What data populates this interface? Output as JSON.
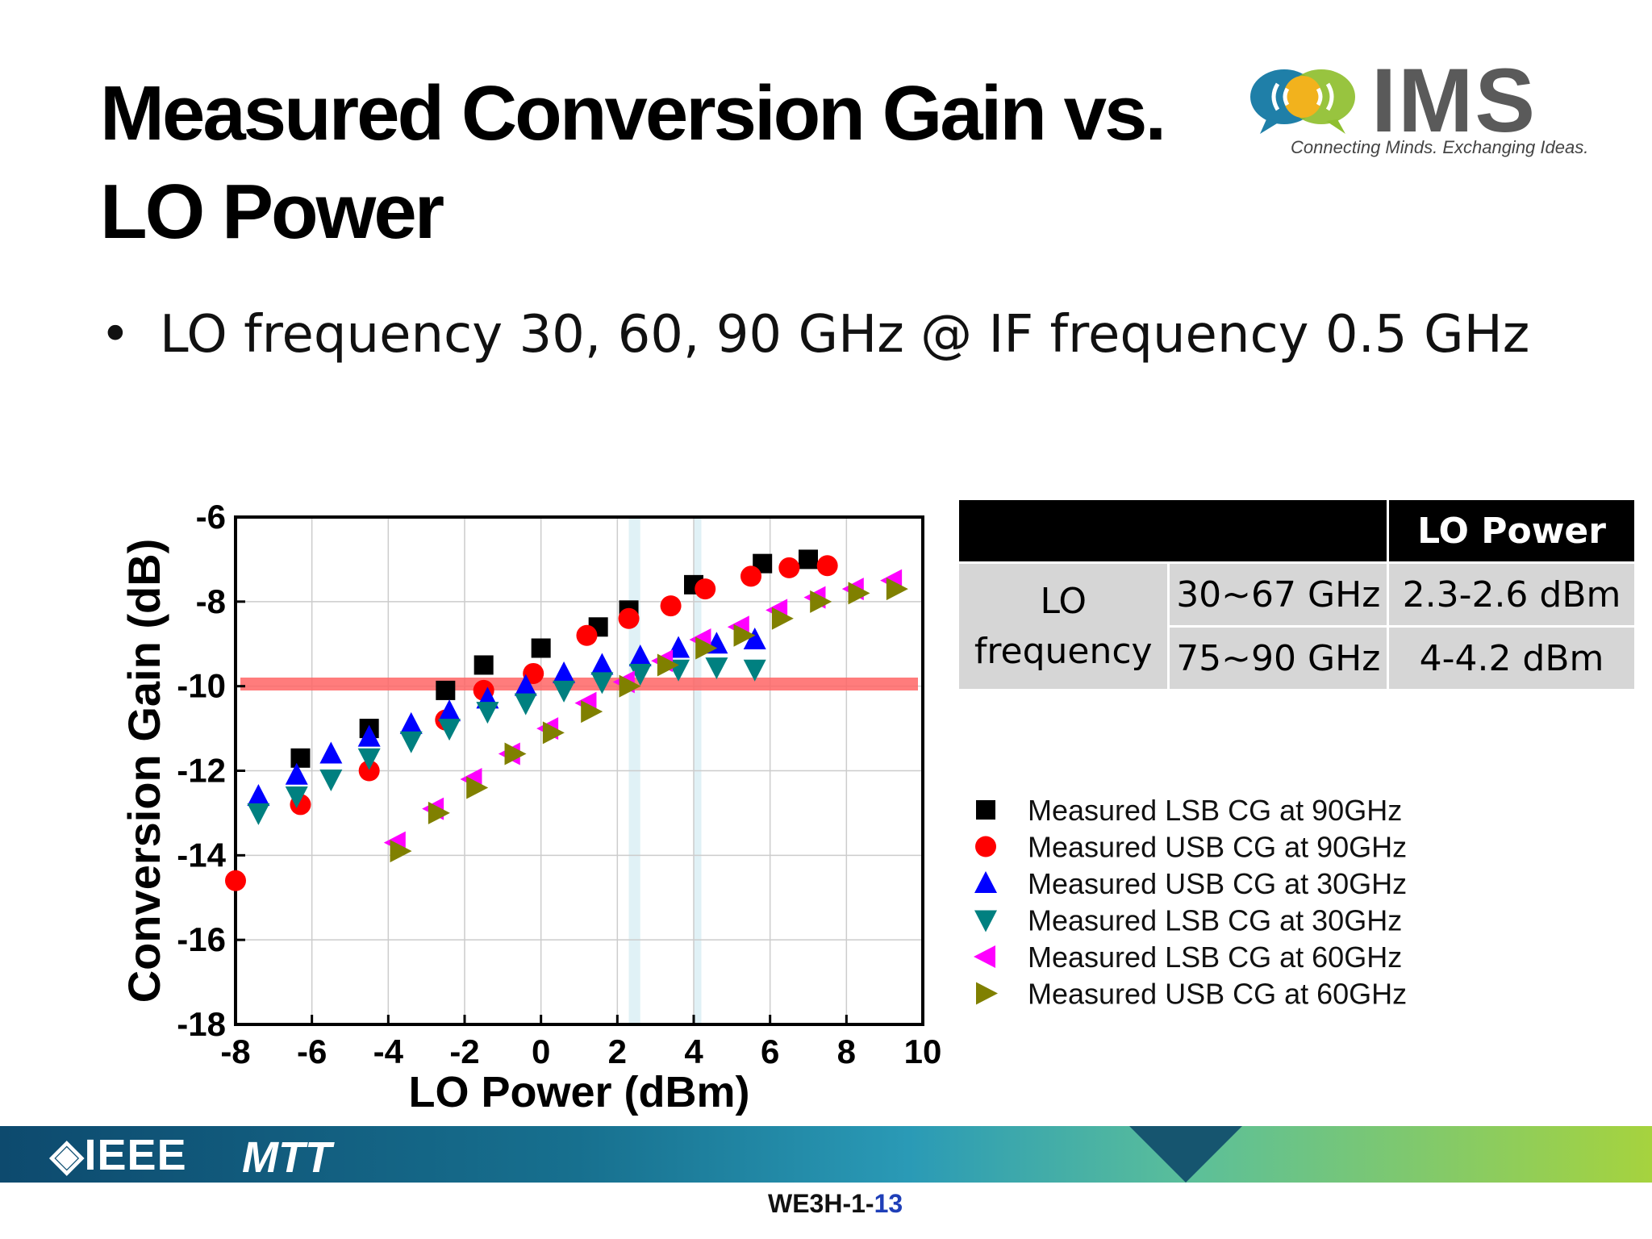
{
  "slide": {
    "title_line1": "Measured Conversion Gain vs.",
    "title_line2": "LO Power",
    "bullet": "LO frequency 30, 60, 90 GHz @ IF frequency 0.5 GHz",
    "logo_text": "IMS",
    "logo_tagline": "Connecting Minds. Exchanging Ideas.",
    "footer_ieee": "IEEE",
    "footer_mtt": "MTT",
    "slide_id": "WE3H-1-",
    "slide_page": "13"
  },
  "table": {
    "header": "LO Power",
    "row_label": "LO frequency",
    "rows": [
      {
        "freq": "30~67 GHz",
        "power": "2.3-2.6 dBm"
      },
      {
        "freq": "75~90 GHz",
        "power": "4-4.2 dBm"
      }
    ]
  },
  "chart_data": {
    "type": "scatter",
    "xlabel": "LO Power (dBm)",
    "ylabel": "Conversion Gain (dB)",
    "xlim": [
      -8,
      10
    ],
    "ylim": [
      -18,
      -6
    ],
    "xticks": [
      -8,
      -6,
      -4,
      -2,
      0,
      2,
      4,
      6,
      8,
      10
    ],
    "yticks": [
      -6,
      -8,
      -10,
      -12,
      -14,
      -16,
      -18
    ],
    "grid": true,
    "legend": "right",
    "reference_line": {
      "y": -9.95,
      "color": "#ff6666"
    },
    "highlight_bands": [
      [
        2.3,
        2.6
      ],
      [
        4.0,
        4.2
      ]
    ],
    "series": [
      {
        "name": "Measured LSB CG at 90GHz",
        "marker": "square",
        "color": "#000000",
        "x": [
          -6.3,
          -4.5,
          -2.5,
          -1.5,
          0,
          1.5,
          2.3,
          4.0,
          5.8,
          7.0
        ],
        "y": [
          -11.7,
          -11.0,
          -10.1,
          -9.5,
          -9.1,
          -8.6,
          -8.2,
          -7.6,
          -7.1,
          -7.0
        ]
      },
      {
        "name": "Measured USB CG at 90GHz",
        "marker": "circle",
        "color": "#ff0000",
        "x": [
          -8.0,
          -6.3,
          -4.5,
          -2.5,
          -1.5,
          -0.2,
          1.2,
          2.3,
          3.4,
          4.3,
          5.5,
          6.5,
          7.5
        ],
        "y": [
          -14.6,
          -12.8,
          -12.0,
          -10.8,
          -10.1,
          -9.7,
          -8.8,
          -8.4,
          -8.1,
          -7.7,
          -7.4,
          -7.2,
          -7.15
        ]
      },
      {
        "name": "Measured USB CG at 30GHz",
        "marker": "triangle-up",
        "color": "#0000ff",
        "x": [
          -7.4,
          -6.4,
          -5.5,
          -4.5,
          -3.4,
          -2.4,
          -1.4,
          -0.4,
          0.6,
          1.6,
          2.6,
          3.6,
          4.6,
          5.6
        ],
        "y": [
          -12.6,
          -12.1,
          -11.6,
          -11.2,
          -10.9,
          -10.6,
          -10.3,
          -10.0,
          -9.7,
          -9.5,
          -9.3,
          -9.1,
          -9.0,
          -8.9
        ]
      },
      {
        "name": "Measured LSB CG at 30GHz",
        "marker": "triangle-down",
        "color": "#008080",
        "x": [
          -7.4,
          -6.4,
          -5.5,
          -4.5,
          -3.4,
          -2.4,
          -1.4,
          -0.4,
          0.6,
          1.6,
          2.6,
          3.6,
          4.6,
          5.6
        ],
        "y": [
          -13.0,
          -12.6,
          -12.2,
          -11.7,
          -11.3,
          -11.0,
          -10.6,
          -10.4,
          -10.1,
          -9.9,
          -9.7,
          -9.6,
          -9.55,
          -9.6
        ]
      },
      {
        "name": "Measured LSB CG at 60GHz",
        "marker": "triangle-left",
        "color": "#ff00ff",
        "x": [
          -3.8,
          -2.8,
          -1.8,
          -0.8,
          0.2,
          1.2,
          2.2,
          3.2,
          4.2,
          5.2,
          6.2,
          7.2,
          8.2,
          9.2
        ],
        "y": [
          -13.7,
          -12.9,
          -12.2,
          -11.6,
          -11.0,
          -10.4,
          -9.9,
          -9.4,
          -8.9,
          -8.6,
          -8.2,
          -7.9,
          -7.7,
          -7.5
        ]
      },
      {
        "name": "Measured USB CG at 60GHz",
        "marker": "triangle-right",
        "color": "#808000",
        "x": [
          -3.7,
          -2.7,
          -1.7,
          -0.7,
          0.3,
          1.3,
          2.3,
          3.3,
          4.3,
          5.3,
          6.3,
          7.3,
          8.3,
          9.3
        ],
        "y": [
          -13.9,
          -13.0,
          -12.4,
          -11.6,
          -11.1,
          -10.6,
          -10.0,
          -9.5,
          -9.1,
          -8.8,
          -8.4,
          -8.0,
          -7.8,
          -7.7
        ]
      }
    ]
  }
}
